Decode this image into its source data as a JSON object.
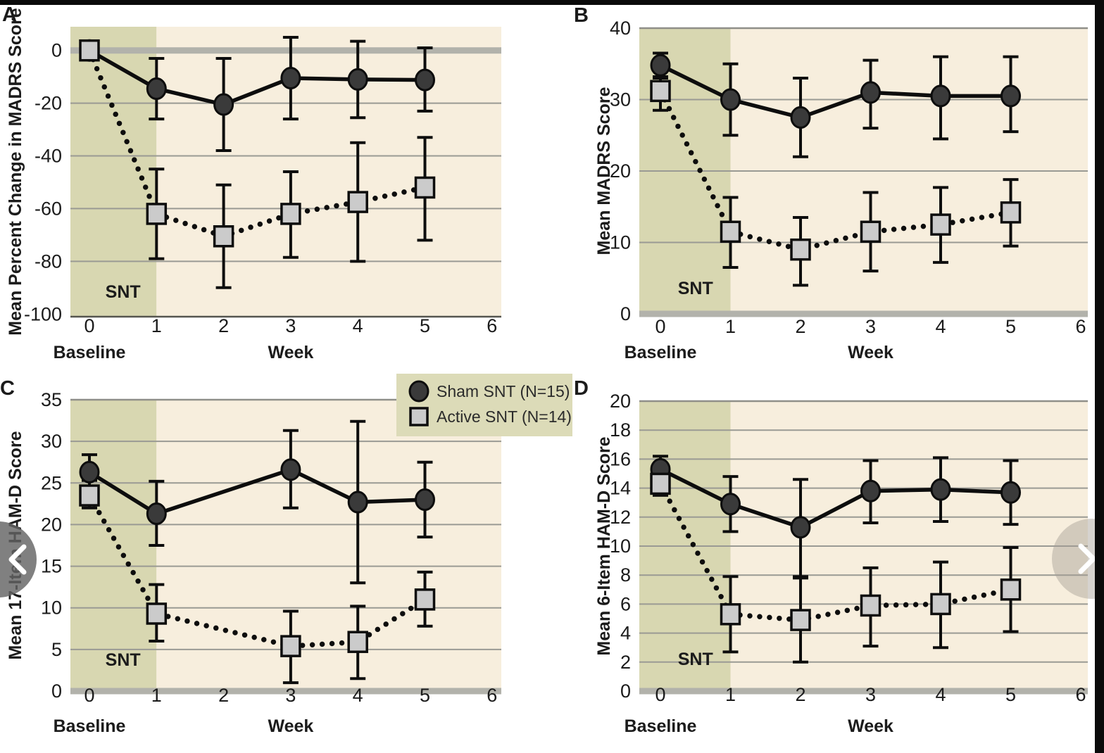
{
  "page": {
    "background": "#ffffff",
    "frame_color": "#0a0a0a"
  },
  "colors": {
    "snt_region_green": "#d8d7b1",
    "plot_beige": "#f7eedd",
    "gridline": "#9a9a94",
    "plot_edge": "#8f8f89",
    "zero_bar": "#b2b2ab",
    "marker_dark_fill": "#3a3a3a",
    "marker_light_fill": "#cbcbcb",
    "line_black": "#0d0d0d",
    "text_dark": "#1b1b1b",
    "legend_bg": "#dcdbb8"
  },
  "legend": {
    "bg": "#dcdbb8",
    "items": [
      {
        "label": "Sham SNT (N=15)",
        "marker": "circle"
      },
      {
        "label": "Active SNT (N=14)",
        "marker": "square"
      }
    ]
  },
  "carousel": {
    "left_icon": "chevron-left-icon",
    "right_icon": "chevron-right-icon"
  },
  "chart_data": [
    {
      "panel": "A",
      "type": "line",
      "ylabel": "Mean Percent Change in MADRS Score",
      "xlabel": "Week",
      "x_first_tick_label": "Baseline",
      "snt_label": "SNT",
      "xticks": [
        0,
        1,
        2,
        3,
        4,
        5,
        6
      ],
      "yticks": [
        0,
        -20,
        -40,
        -60,
        -80,
        -100
      ],
      "gridlines": [
        -20,
        -40,
        -60,
        -80
      ],
      "ylim": [
        -101,
        9
      ],
      "zero_bar_at": 0,
      "series": [
        {
          "name": "Sham SNT (N=15)",
          "marker": "circle",
          "line": "solid",
          "x": [
            0,
            1,
            2,
            3,
            4,
            5
          ],
          "y": [
            0,
            -14.5,
            -20.5,
            -10.5,
            -11,
            -11.2
          ],
          "err_lo": [
            null,
            -26,
            -38,
            -26,
            -25.5,
            -23
          ],
          "err_hi": [
            null,
            -3,
            -3,
            5,
            3.5,
            1
          ]
        },
        {
          "name": "Active SNT (N=14)",
          "marker": "square",
          "line": "dotted",
          "x": [
            0,
            1,
            2,
            3,
            4,
            5
          ],
          "y": [
            0,
            -62,
            -70.5,
            -62,
            -57.5,
            -52
          ],
          "err_lo": [
            null,
            -79,
            -90,
            -78.5,
            -80,
            -72
          ],
          "err_hi": [
            null,
            -45,
            -51,
            -46,
            -35,
            -33
          ]
        }
      ]
    },
    {
      "panel": "B",
      "type": "line",
      "ylabel": "Mean MADRS Score",
      "xlabel": "Week",
      "x_first_tick_label": "Baseline",
      "snt_label": "SNT",
      "xticks": [
        0,
        1,
        2,
        3,
        4,
        5,
        6
      ],
      "yticks": [
        40,
        30,
        20,
        10,
        0
      ],
      "gridlines": [
        30,
        20,
        10
      ],
      "ylim": [
        0,
        40
      ],
      "zero_bar_at": 0,
      "series": [
        {
          "name": "Sham SNT (N=15)",
          "marker": "circle",
          "line": "solid",
          "x": [
            0,
            1,
            2,
            3,
            4,
            5
          ],
          "y": [
            34.8,
            30,
            27.5,
            31,
            30.5,
            30.5
          ],
          "err_lo": [
            33,
            25,
            22,
            26,
            24.5,
            25.5
          ],
          "err_hi": [
            36.5,
            35,
            33,
            35.5,
            36,
            36
          ]
        },
        {
          "name": "Active SNT (N=14)",
          "marker": "square",
          "line": "dotted",
          "x": [
            0,
            1,
            2,
            3,
            4,
            5
          ],
          "y": [
            31.2,
            11.5,
            9,
            11.5,
            12.5,
            14.2
          ],
          "err_lo": [
            28.5,
            6.5,
            4,
            6,
            7.2,
            9.5
          ],
          "err_hi": [
            33.2,
            16.3,
            13.5,
            17,
            17.7,
            18.8
          ]
        }
      ]
    },
    {
      "panel": "C",
      "type": "line",
      "ylabel": "Mean 17-Item HAM-D Score",
      "xlabel": "Week",
      "x_first_tick_label": "Baseline",
      "snt_label": "SNT",
      "xticks": [
        0,
        1,
        2,
        3,
        4,
        5,
        6
      ],
      "yticks": [
        35,
        30,
        25,
        20,
        15,
        10,
        5,
        0
      ],
      "gridlines": [
        30,
        25,
        20,
        15,
        10,
        5
      ],
      "ylim": [
        0,
        35
      ],
      "zero_bar_at": 0,
      "series": [
        {
          "name": "Sham SNT (N=15)",
          "marker": "circle",
          "line": "solid",
          "x": [
            0,
            1,
            3,
            4,
            5
          ],
          "y": [
            26.3,
            21.3,
            26.6,
            22.7,
            23
          ],
          "err_lo": [
            24.4,
            17.5,
            22,
            13,
            18.5
          ],
          "err_hi": [
            28.4,
            25.2,
            31.3,
            32.4,
            27.5
          ]
        },
        {
          "name": "Active SNT (N=14)",
          "marker": "square",
          "line": "dotted",
          "x": [
            0,
            1,
            3,
            4,
            5
          ],
          "y": [
            23.5,
            9.3,
            5.4,
            5.9,
            11
          ],
          "err_lo": [
            22,
            6,
            1,
            1.5,
            7.8
          ],
          "err_hi": [
            25.3,
            12.8,
            9.6,
            10.2,
            14.3
          ]
        }
      ]
    },
    {
      "panel": "D",
      "type": "line",
      "ylabel": "Mean 6-Item HAM-D Score",
      "xlabel": "Week",
      "x_first_tick_label": "Baseline",
      "snt_label": "SNT",
      "xticks": [
        0,
        1,
        2,
        3,
        4,
        5,
        6
      ],
      "yticks": [
        20,
        18,
        16,
        14,
        12,
        10,
        8,
        6,
        4,
        2,
        0
      ],
      "gridlines": [
        18,
        16,
        14,
        12,
        10,
        8,
        6,
        4,
        2
      ],
      "ylim": [
        0,
        20
      ],
      "zero_bar_at": 0,
      "series": [
        {
          "name": "Sham SNT (N=15)",
          "marker": "circle",
          "line": "solid",
          "x": [
            0,
            1,
            2,
            3,
            4,
            5
          ],
          "y": [
            15.3,
            12.9,
            11.3,
            13.8,
            13.9,
            13.7
          ],
          "err_lo": [
            13.6,
            11,
            7.9,
            11.6,
            11.7,
            11.5
          ],
          "err_hi": [
            16.2,
            14.8,
            14.6,
            15.9,
            16.1,
            15.9
          ]
        },
        {
          "name": "Active SNT (N=14)",
          "marker": "square",
          "line": "dotted",
          "x": [
            0,
            1,
            2,
            3,
            4,
            5
          ],
          "y": [
            14.3,
            5.3,
            4.9,
            5.9,
            6.0,
            7.0
          ],
          "err_lo": [
            13.5,
            2.7,
            2,
            3.1,
            3.0,
            4.1
          ],
          "err_hi": [
            15.1,
            7.9,
            7.8,
            8.5,
            8.9,
            9.9
          ]
        }
      ]
    }
  ]
}
